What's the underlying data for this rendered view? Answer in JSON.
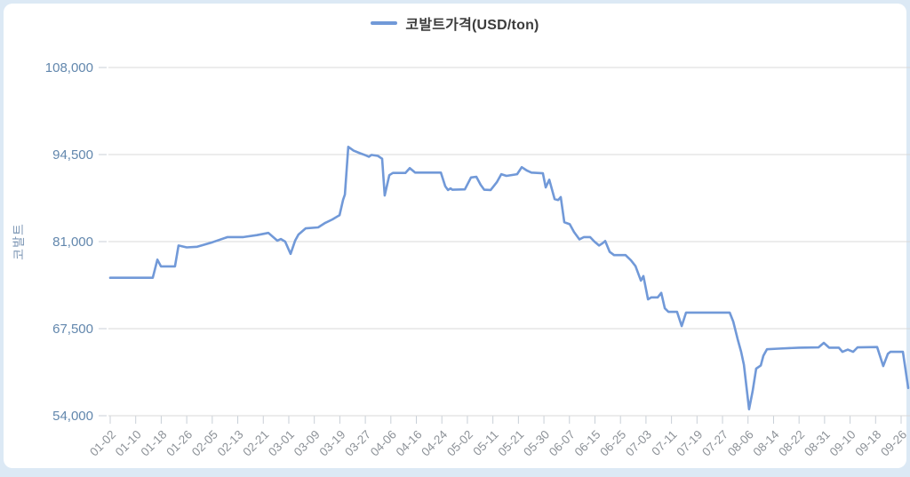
{
  "page": {
    "frame_color": "#dce9f5",
    "panel_color": "#ffffff"
  },
  "legend": {
    "label": "코발트가격(USD/ton)",
    "swatch_color": "#7199d8"
  },
  "chart_data": {
    "type": "line",
    "title": "",
    "xlabel": "",
    "ylabel": "코발트",
    "legend_position": "top-center",
    "grid": "horizontal",
    "ylim": [
      54000,
      108000
    ],
    "y_ticks": [
      54000,
      67500,
      81000,
      94500,
      108000
    ],
    "x_tick_labels": [
      "01-02",
      "01-10",
      "01-18",
      "01-26",
      "02-05",
      "02-13",
      "02-21",
      "03-01",
      "03-09",
      "03-19",
      "03-27",
      "04-06",
      "04-16",
      "04-24",
      "05-02",
      "05-11",
      "05-21",
      "05-30",
      "06-07",
      "06-15",
      "06-25",
      "07-03",
      "07-11",
      "07-19",
      "07-27",
      "08-06",
      "08-14",
      "08-22",
      "08-31",
      "09-10",
      "09-18",
      "09-26"
    ],
    "series": [
      {
        "name": "코발트가격(USD/ton)",
        "color": "#7199d8",
        "points_format": "[x_in_tick_units, price_usd_per_ton]",
        "points": [
          [
            0,
            75400
          ],
          [
            1.67,
            75400
          ],
          [
            1.85,
            78200
          ],
          [
            1.99,
            77150
          ],
          [
            2.54,
            77150
          ],
          [
            2.68,
            80400
          ],
          [
            3.0,
            80100
          ],
          [
            3.41,
            80200
          ],
          [
            4.01,
            80900
          ],
          [
            4.6,
            81700
          ],
          [
            5.22,
            81700
          ],
          [
            5.75,
            82000
          ],
          [
            6.2,
            82350
          ],
          [
            6.55,
            81150
          ],
          [
            6.69,
            81400
          ],
          [
            6.86,
            81000
          ],
          [
            7.07,
            79100
          ],
          [
            7.25,
            81150
          ],
          [
            7.38,
            82100
          ],
          [
            7.66,
            83050
          ],
          [
            8.15,
            83200
          ],
          [
            8.43,
            83900
          ],
          [
            8.71,
            84450
          ],
          [
            8.99,
            85100
          ],
          [
            9.13,
            87500
          ],
          [
            9.2,
            88300
          ],
          [
            9.33,
            95700
          ],
          [
            9.54,
            95100
          ],
          [
            9.79,
            94700
          ],
          [
            10.0,
            94400
          ],
          [
            10.14,
            94150
          ],
          [
            10.24,
            94450
          ],
          [
            10.49,
            94300
          ],
          [
            10.66,
            93850
          ],
          [
            10.76,
            88150
          ],
          [
            10.94,
            91300
          ],
          [
            11.08,
            91650
          ],
          [
            11.57,
            91650
          ],
          [
            11.74,
            92400
          ],
          [
            11.95,
            91700
          ],
          [
            12.96,
            91700
          ],
          [
            13.13,
            89600
          ],
          [
            13.24,
            89000
          ],
          [
            13.34,
            89250
          ],
          [
            13.41,
            89050
          ],
          [
            13.9,
            89100
          ],
          [
            14.14,
            90950
          ],
          [
            14.35,
            91050
          ],
          [
            14.52,
            89800
          ],
          [
            14.66,
            89050
          ],
          [
            14.91,
            89000
          ],
          [
            15.15,
            90200
          ],
          [
            15.33,
            91450
          ],
          [
            15.53,
            91200
          ],
          [
            15.95,
            91450
          ],
          [
            16.13,
            92550
          ],
          [
            16.34,
            92000
          ],
          [
            16.51,
            91700
          ],
          [
            16.96,
            91600
          ],
          [
            17.07,
            89400
          ],
          [
            17.21,
            90600
          ],
          [
            17.42,
            87600
          ],
          [
            17.56,
            87450
          ],
          [
            17.66,
            87900
          ],
          [
            17.8,
            84000
          ],
          [
            18.01,
            83700
          ],
          [
            18.18,
            82500
          ],
          [
            18.39,
            81350
          ],
          [
            18.57,
            81700
          ],
          [
            18.81,
            81700
          ],
          [
            18.98,
            81000
          ],
          [
            19.16,
            80400
          ],
          [
            19.3,
            80750
          ],
          [
            19.4,
            81100
          ],
          [
            19.58,
            79400
          ],
          [
            19.75,
            78900
          ],
          [
            20.2,
            78900
          ],
          [
            20.41,
            78100
          ],
          [
            20.59,
            77200
          ],
          [
            20.8,
            74950
          ],
          [
            20.9,
            75650
          ],
          [
            21.08,
            72050
          ],
          [
            21.21,
            72350
          ],
          [
            21.46,
            72350
          ],
          [
            21.6,
            73050
          ],
          [
            21.74,
            70650
          ],
          [
            21.88,
            70100
          ],
          [
            22.22,
            70100
          ],
          [
            22.4,
            67900
          ],
          [
            22.57,
            70000
          ],
          [
            24.28,
            70000
          ],
          [
            24.42,
            68600
          ],
          [
            24.59,
            65900
          ],
          [
            24.73,
            63900
          ],
          [
            24.84,
            61900
          ],
          [
            25.04,
            55000
          ],
          [
            25.18,
            57800
          ],
          [
            25.32,
            61300
          ],
          [
            25.5,
            61800
          ],
          [
            25.6,
            63300
          ],
          [
            25.74,
            64300
          ],
          [
            26.19,
            64400
          ],
          [
            27.0,
            64550
          ],
          [
            27.76,
            64600
          ],
          [
            27.97,
            65300
          ],
          [
            28.18,
            64550
          ],
          [
            28.56,
            64550
          ],
          [
            28.7,
            63900
          ],
          [
            28.91,
            64250
          ],
          [
            29.12,
            63900
          ],
          [
            29.29,
            64600
          ],
          [
            30.06,
            64650
          ],
          [
            30.3,
            61700
          ],
          [
            30.48,
            63600
          ],
          [
            30.58,
            63900
          ],
          [
            31.07,
            63900
          ],
          [
            31.28,
            58300
          ]
        ]
      }
    ]
  },
  "style": {
    "grid_color": "#d9d9d9",
    "axis_color": "#cfd6dd",
    "tick_color": "#c8cfd7",
    "y_label_color": "#6287ad",
    "x_label_color": "#8d9298"
  }
}
